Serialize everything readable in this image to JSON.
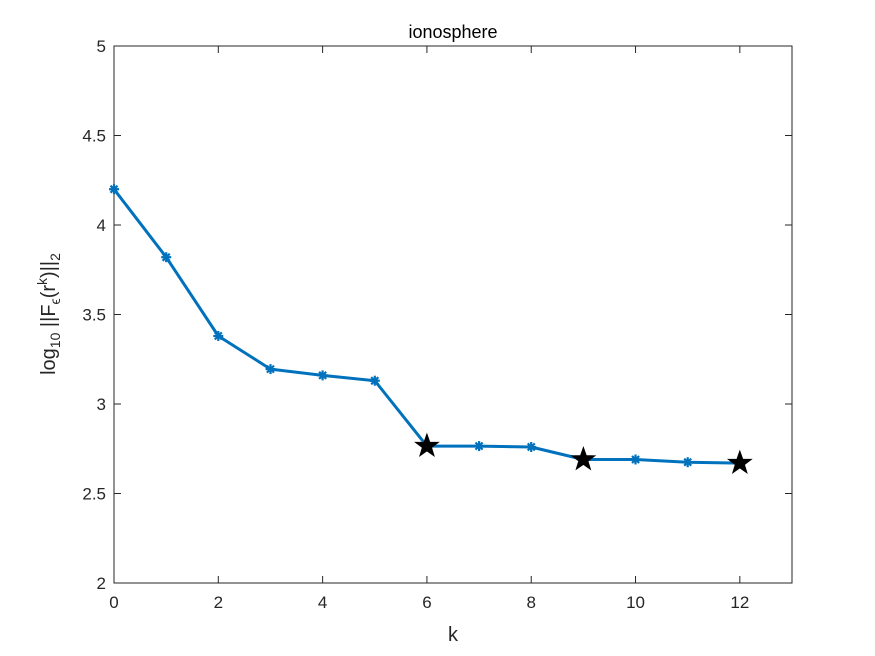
{
  "chart_data": {
    "type": "line",
    "title": "ionosphere",
    "xlabel": "k",
    "ylabel": {
      "prefix": "log",
      "base": "10",
      "norm_open": " ||F",
      "eps": "ϵ",
      "arg_open": "(r",
      "sup": "k",
      "arg_close": ")||",
      "norm_sub": "2"
    },
    "xlim": [
      0,
      13
    ],
    "ylim": [
      2,
      5
    ],
    "xticks": [
      0,
      2,
      4,
      6,
      8,
      10,
      12
    ],
    "yticks": [
      2,
      2.5,
      3,
      3.5,
      4,
      4.5,
      5
    ],
    "grid": false,
    "line_color": "#0072BD",
    "star_color": "#000000",
    "series": [
      {
        "x": [
          0,
          1,
          2,
          3,
          4,
          5,
          6,
          7,
          8,
          9,
          10,
          11,
          12
        ],
        "values": [
          4.2,
          3.82,
          3.38,
          3.195,
          3.16,
          3.13,
          2.765,
          2.765,
          2.76,
          2.69,
          2.69,
          2.675,
          2.67
        ]
      }
    ],
    "highlight_points": [
      {
        "x": 6,
        "y": 2.765
      },
      {
        "x": 9,
        "y": 2.69
      },
      {
        "x": 12,
        "y": 2.67
      }
    ]
  }
}
